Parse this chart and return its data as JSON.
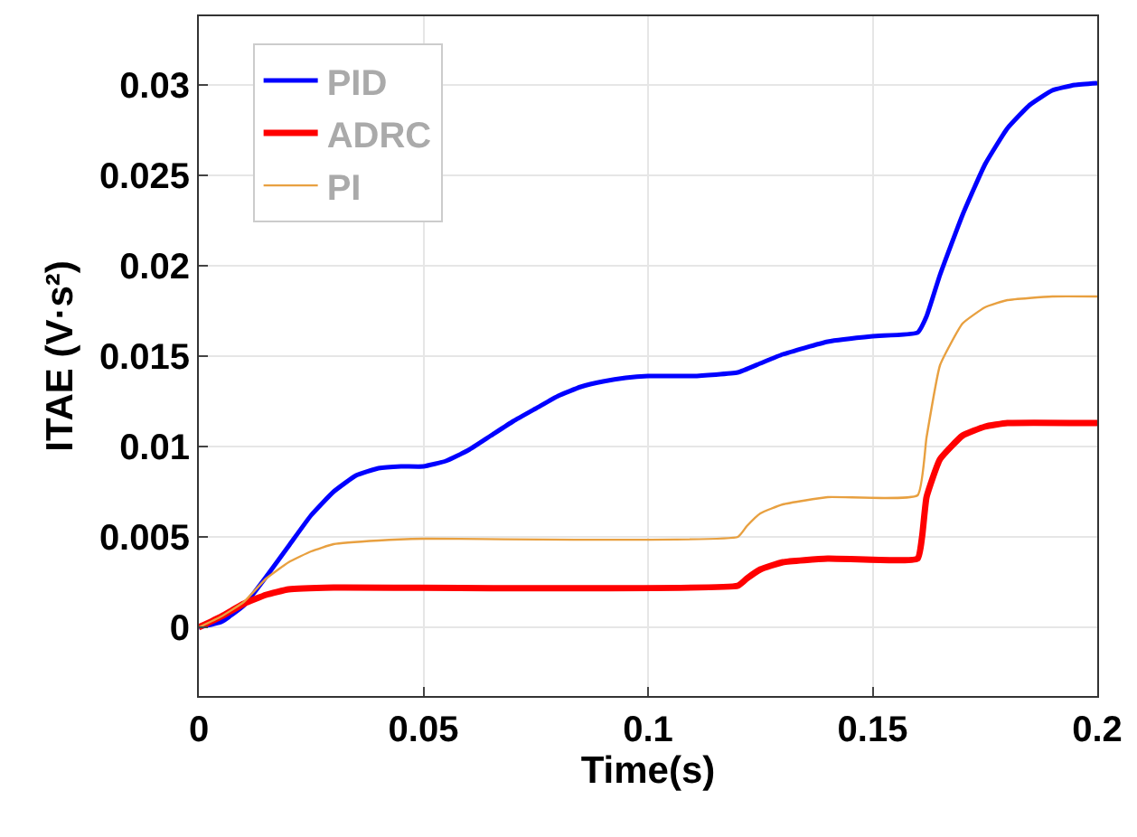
{
  "chart_data": {
    "type": "line",
    "xlabel": "Time(s)",
    "ylabel": "ITAE (V·s²)",
    "xlim": [
      0,
      0.2
    ],
    "xticks": [
      0,
      0.05,
      0.1,
      0.15,
      0.2
    ],
    "ylim": [
      -0.0038,
      0.0338
    ],
    "yticks": [
      0,
      0.005,
      0.01,
      0.015,
      0.02,
      0.025,
      0.03
    ],
    "grid": true,
    "legend": "top left",
    "line_style": "solid",
    "marker": "none",
    "series": [
      {
        "name": "PID",
        "color": "#0000ff",
        "x": [
          0,
          0.005,
          0.01,
          0.015,
          0.02,
          0.025,
          0.03,
          0.035,
          0.04,
          0.045,
          0.05,
          0.055,
          0.06,
          0.065,
          0.07,
          0.075,
          0.08,
          0.085,
          0.09,
          0.095,
          0.1,
          0.11,
          0.12,
          0.125,
          0.13,
          0.14,
          0.15,
          0.16,
          0.162,
          0.165,
          0.17,
          0.175,
          0.18,
          0.185,
          0.19,
          0.195,
          0.2
        ],
        "values": [
          0,
          0.0003,
          0.0012,
          0.0028,
          0.0045,
          0.0062,
          0.0075,
          0.0084,
          0.0088,
          0.0089,
          0.0089,
          0.0092,
          0.0098,
          0.0106,
          0.0114,
          0.0121,
          0.0128,
          0.0133,
          0.0136,
          0.0138,
          0.0139,
          0.0139,
          0.0141,
          0.0146,
          0.0151,
          0.0158,
          0.0161,
          0.0163,
          0.0172,
          0.0195,
          0.0228,
          0.0256,
          0.0276,
          0.0289,
          0.0297,
          0.03,
          0.0301
        ]
      },
      {
        "name": "ADRC",
        "color": "#ff0000",
        "x": [
          0,
          0.005,
          0.01,
          0.015,
          0.02,
          0.03,
          0.12,
          0.122,
          0.125,
          0.13,
          0.14,
          0.16,
          0.161,
          0.162,
          0.165,
          0.17,
          0.175,
          0.18,
          0.2
        ],
        "values": [
          0,
          0.0006,
          0.0013,
          0.0018,
          0.0021,
          0.0022,
          0.0023,
          0.0027,
          0.0032,
          0.0036,
          0.0038,
          0.0038,
          0.005,
          0.0072,
          0.0093,
          0.0106,
          0.0111,
          0.0113,
          0.0113
        ]
      },
      {
        "name": "PI",
        "color": "#e8a040",
        "x": [
          0,
          0.005,
          0.01,
          0.015,
          0.02,
          0.025,
          0.03,
          0.04,
          0.05,
          0.12,
          0.122,
          0.125,
          0.13,
          0.14,
          0.16,
          0.162,
          0.165,
          0.17,
          0.175,
          0.18,
          0.19,
          0.2
        ],
        "values": [
          0,
          0.0006,
          0.0014,
          0.0027,
          0.0036,
          0.0042,
          0.0046,
          0.0048,
          0.0049,
          0.005,
          0.0056,
          0.0063,
          0.0068,
          0.0072,
          0.0073,
          0.0105,
          0.0145,
          0.0168,
          0.0177,
          0.0181,
          0.0183,
          0.0183
        ]
      }
    ]
  }
}
